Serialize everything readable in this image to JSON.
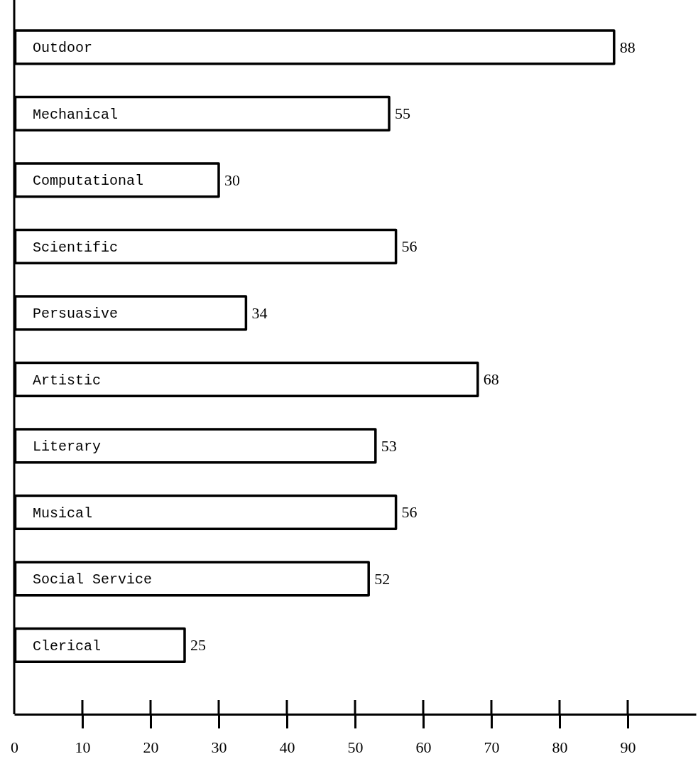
{
  "chart_data": {
    "type": "bar",
    "orientation": "horizontal",
    "categories": [
      "Outdoor",
      "Mechanical",
      "Computational",
      "Scientific",
      "Persuasive",
      "Artistic",
      "Literary",
      "Musical",
      "Social Service",
      "Clerical"
    ],
    "values": [
      88,
      55,
      30,
      56,
      34,
      68,
      53,
      56,
      52,
      25
    ],
    "color": "#ffffff",
    "data_labels": true,
    "xlim": [
      0,
      100
    ],
    "xticks": [
      0,
      10,
      20,
      30,
      40,
      50,
      60,
      70,
      80,
      90
    ]
  }
}
